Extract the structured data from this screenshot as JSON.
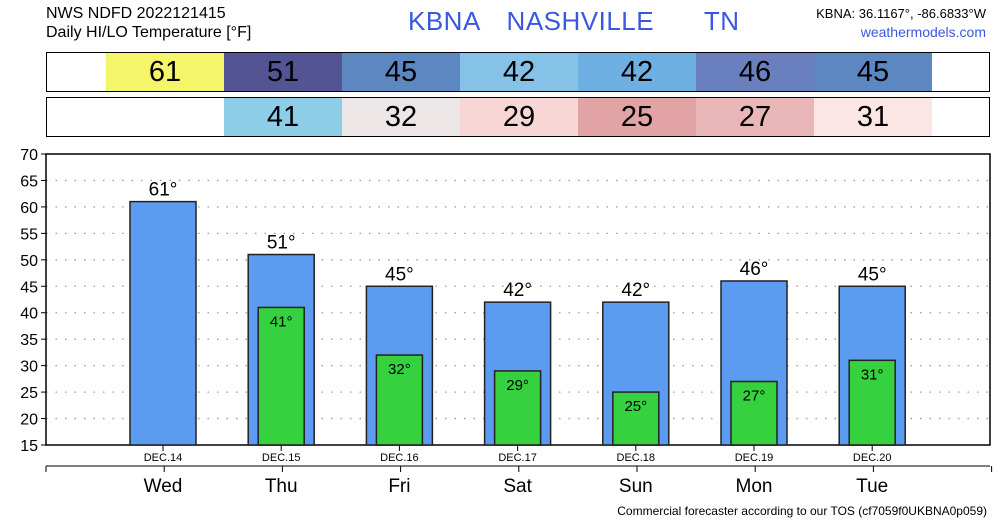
{
  "header": {
    "line1": "NWS NDFD 2022121415",
    "line2": "Daily HI/LO Temperature [°F]",
    "station": "KBNA",
    "city": "NASHVILLE",
    "state": "TN",
    "coords": "KBNA: 36.1167°, -86.6833°W",
    "site": "weathermodels.com"
  },
  "footer": "Commercial forecaster according to our TOS (cf7059f0UKBNA0p059)",
  "colors": {
    "hi_bar": "#5b9cf0",
    "lo_bar": "#36d13f",
    "hi_cells": [
      "#f5f56a",
      "#545394",
      "#5c87c0",
      "#86c2e8",
      "#6fb0e2",
      "#6a7fbd",
      "#5c87c0"
    ],
    "lo_cells": [
      "#8ecde8",
      "#ece6e6",
      "#f7d6d6",
      "#e1a3a4",
      "#eab7b8",
      "#fbe5e5"
    ]
  },
  "chart_data": {
    "type": "bar",
    "categories": [
      "Wed",
      "Thu",
      "Fri",
      "Sat",
      "Sun",
      "Mon",
      "Tue"
    ],
    "dates": [
      "DEC.14",
      "DEC.15",
      "DEC.16",
      "DEC.17",
      "DEC.18",
      "DEC.19",
      "DEC.20"
    ],
    "series": [
      {
        "values": [
          61,
          51,
          45,
          42,
          42,
          46,
          45
        ]
      },
      {
        "values": [
          null,
          41,
          32,
          29,
          25,
          27,
          31
        ]
      }
    ],
    "hi_labels": [
      "61°",
      "51°",
      "45°",
      "42°",
      "42°",
      "46°",
      "45°"
    ],
    "lo_labels": [
      "",
      "41°",
      "32°",
      "29°",
      "25°",
      "27°",
      "31°"
    ],
    "hi_row": [
      "61",
      "51",
      "45",
      "42",
      "42",
      "46",
      "45"
    ],
    "lo_row": [
      "",
      "41",
      "32",
      "29",
      "25",
      "27",
      "31"
    ],
    "ylim": [
      15,
      70
    ],
    "yticks": [
      15,
      20,
      25,
      30,
      35,
      40,
      45,
      50,
      55,
      60,
      65,
      70
    ],
    "grid": true
  }
}
